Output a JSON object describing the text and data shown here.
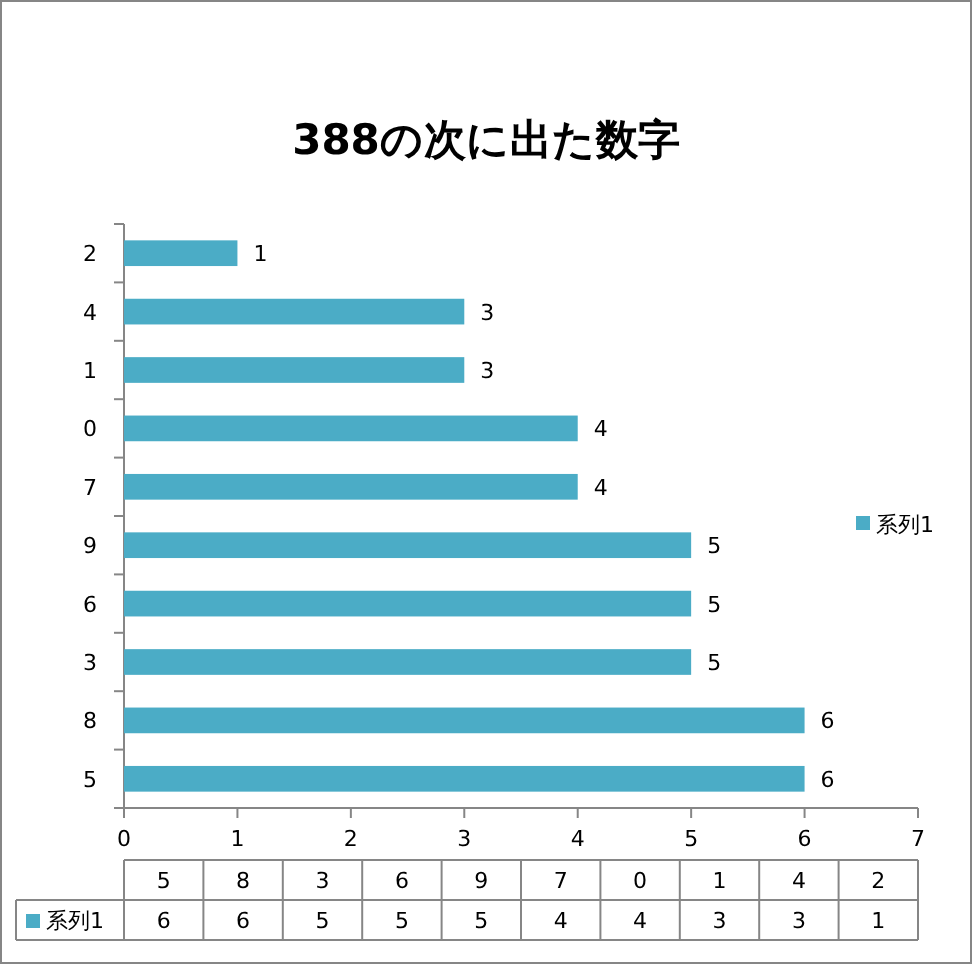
{
  "chart_data": {
    "type": "bar",
    "orientation": "horizontal",
    "title": "388の次に出た数字",
    "categories": [
      "2",
      "4",
      "1",
      "0",
      "7",
      "9",
      "6",
      "3",
      "8",
      "5"
    ],
    "series": [
      {
        "name": "系列1",
        "color": "#4bacc6",
        "values": [
          1,
          3,
          3,
          4,
          4,
          5,
          5,
          5,
          6,
          6
        ]
      }
    ],
    "xlim": [
      0,
      7
    ],
    "xticks": [
      0,
      1,
      2,
      3,
      4,
      5,
      6,
      7
    ],
    "data_labels": true,
    "legend": "right"
  }
}
